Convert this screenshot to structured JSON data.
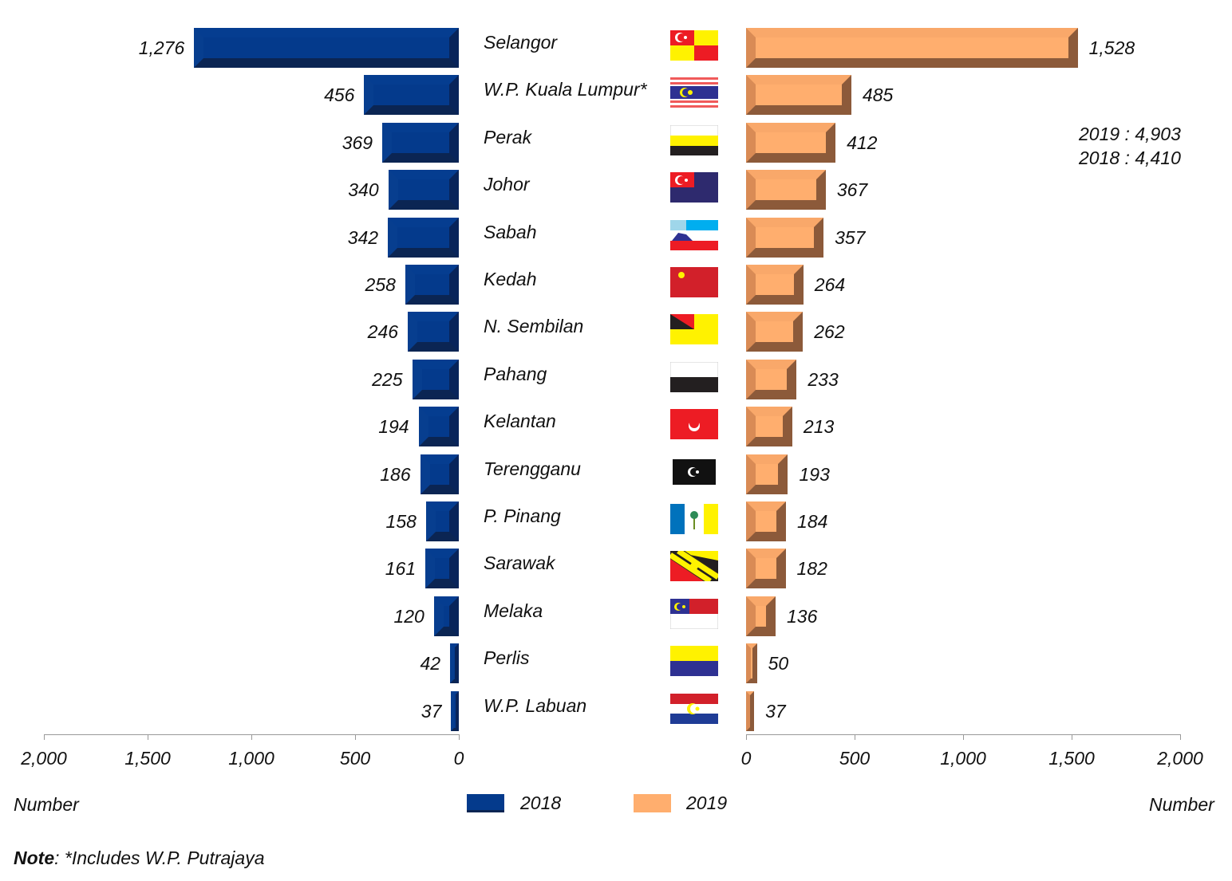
{
  "chart_data": {
    "type": "bar",
    "subtype": "butterfly",
    "categories": [
      "Selangor",
      "W.P. Kuala Lumpur*",
      "Perak",
      "Johor",
      "Sabah",
      "Kedah",
      "N. Sembilan",
      "Pahang",
      "Kelantan",
      "Terengganu",
      "P. Pinang",
      "Sarawak",
      "Melaka",
      "Perlis",
      "W.P. Labuan"
    ],
    "series": [
      {
        "name": "2018",
        "values": [
          1276,
          456,
          369,
          340,
          342,
          258,
          246,
          225,
          194,
          186,
          158,
          161,
          120,
          42,
          37
        ],
        "labels": [
          "1,276",
          "456",
          "369",
          "340",
          "342",
          "258",
          "246",
          "225",
          "194",
          "186",
          "158",
          "161",
          "120",
          "42",
          "37"
        ],
        "color": "#043a8c"
      },
      {
        "name": "2019",
        "values": [
          1528,
          485,
          412,
          367,
          357,
          264,
          262,
          233,
          213,
          193,
          184,
          182,
          136,
          50,
          37
        ],
        "labels": [
          "1,528",
          "485",
          "412",
          "367",
          "357",
          "264",
          "262",
          "233",
          "213",
          "193",
          "184",
          "182",
          "136",
          "50",
          "37"
        ],
        "color": "#ffae6e"
      }
    ],
    "xlim": [
      0,
      2000
    ],
    "left_ticks": [
      "2,000",
      "1,500",
      "1,000",
      "500",
      "0"
    ],
    "right_ticks": [
      "0",
      "500",
      "1,000",
      "1,500",
      "2,000"
    ],
    "left_xlabel": "Number",
    "right_xlabel": "Number",
    "totals": [
      "2019 : 4,903",
      "2018 : 4,410"
    ],
    "legend": [
      "2018",
      "2019"
    ],
    "legend_position": "bottom-center",
    "note_bold": "Note",
    "note_text": ": *Includes W.P. Putrajaya"
  }
}
